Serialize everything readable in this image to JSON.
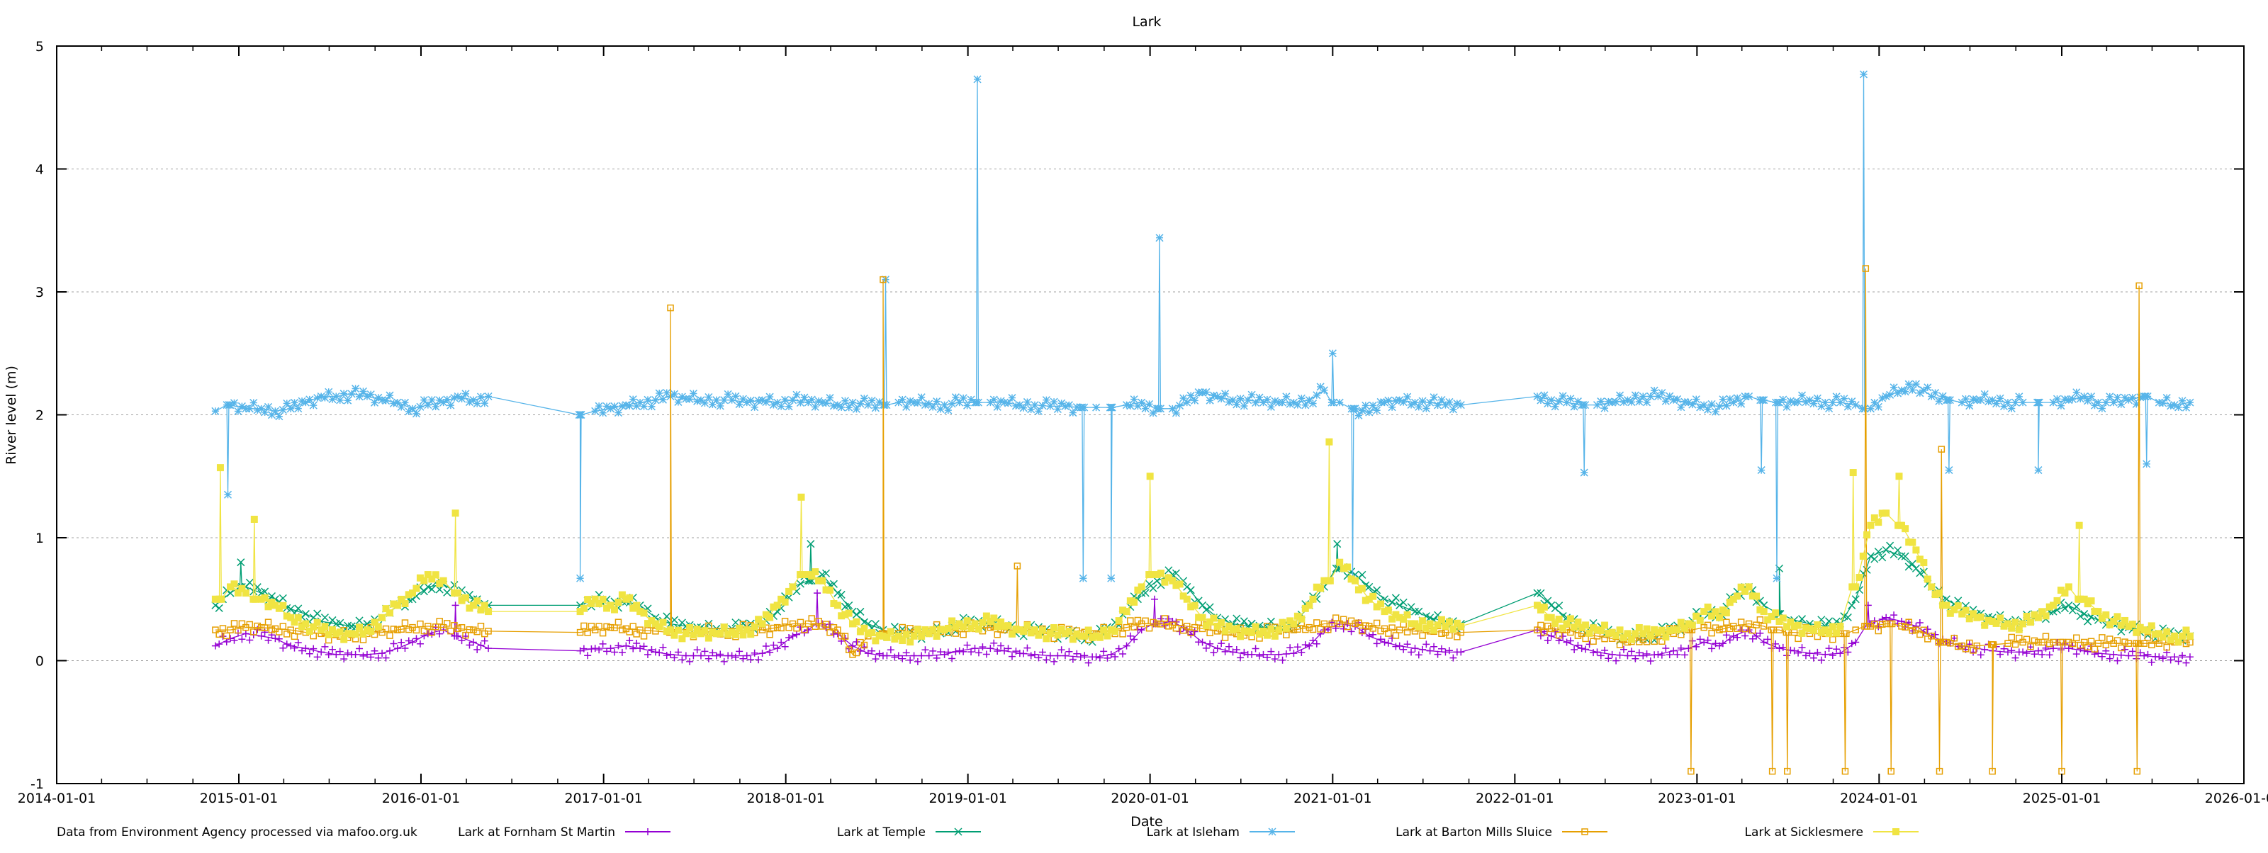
{
  "chart_data": {
    "type": "line",
    "title": "Lark",
    "xlabel": "Date",
    "ylabel": "River level (m)",
    "xlim": [
      "2014-01-01",
      "2026-01-01"
    ],
    "ylim": [
      -1,
      5
    ],
    "grid": "horizontal dashed at major y ticks",
    "legend_placement": "bottom",
    "x_ticks": [
      "2014-01-01",
      "2015-01-01",
      "2016-01-01",
      "2017-01-01",
      "2018-01-01",
      "2019-01-01",
      "2020-01-01",
      "2021-01-01",
      "2022-01-01",
      "2023-01-01",
      "2024-01-01",
      "2025-01-01",
      "2026-01-01"
    ],
    "y_ticks": [
      "-1",
      "0",
      "1",
      "2",
      "3",
      "4",
      "5"
    ],
    "footnote": "Data from Environment Agency processed via mafoo.org.uk",
    "x": [
      "2014-11",
      "2014-12",
      "2015-01",
      "2015-02",
      "2015-03",
      "2015-04",
      "2015-05",
      "2015-06",
      "2015-07",
      "2015-08",
      "2015-09",
      "2015-10",
      "2015-11",
      "2015-12",
      "2016-01",
      "2016-02",
      "2016-03",
      "2016-04",
      "2016-05",
      "2016-11",
      "2016-12",
      "2017-01",
      "2017-02",
      "2017-03",
      "2017-04",
      "2017-05",
      "2017-06",
      "2017-07",
      "2017-08",
      "2017-09",
      "2017-10",
      "2017-11",
      "2017-12",
      "2018-01",
      "2018-02",
      "2018-03",
      "2018-04",
      "2018-05",
      "2018-06",
      "2018-07",
      "2018-08",
      "2018-09",
      "2018-10",
      "2018-11",
      "2018-12",
      "2019-01",
      "2019-02",
      "2019-03",
      "2019-04",
      "2019-05",
      "2019-06",
      "2019-07",
      "2019-08",
      "2019-09",
      "2019-10",
      "2019-11",
      "2019-12",
      "2020-01",
      "2020-02",
      "2020-03",
      "2020-04",
      "2020-05",
      "2020-06",
      "2020-07",
      "2020-08",
      "2020-09",
      "2020-10",
      "2020-11",
      "2020-12",
      "2021-01",
      "2021-02",
      "2021-03",
      "2021-04",
      "2021-05",
      "2021-06",
      "2021-07",
      "2021-08",
      "2021-09",
      "2022-02",
      "2022-03",
      "2022-04",
      "2022-05",
      "2022-06",
      "2022-07",
      "2022-08",
      "2022-09",
      "2022-10",
      "2022-11",
      "2022-12",
      "2023-01",
      "2023-02",
      "2023-03",
      "2023-04",
      "2023-05",
      "2023-06",
      "2023-07",
      "2023-08",
      "2023-09",
      "2023-10",
      "2023-11",
      "2023-12",
      "2024-01",
      "2024-02",
      "2024-03",
      "2024-04",
      "2024-05",
      "2024-06",
      "2024-07",
      "2024-08",
      "2024-09",
      "2024-10",
      "2024-11",
      "2024-12",
      "2025-01",
      "2025-02",
      "2025-03",
      "2025-04",
      "2025-05",
      "2025-06",
      "2025-07",
      "2025-08",
      "2025-09"
    ],
    "series": [
      {
        "name": "Lark at Fornham St Martin",
        "color": "#9400d3",
        "marker": "plus",
        "values": [
          0.12,
          0.18,
          0.22,
          0.2,
          0.18,
          0.12,
          0.1,
          0.07,
          0.05,
          0.05,
          0.05,
          0.06,
          0.1,
          0.15,
          0.22,
          0.25,
          0.2,
          0.15,
          0.1,
          0.08,
          0.1,
          0.1,
          0.12,
          0.1,
          0.07,
          0.05,
          0.04,
          0.04,
          0.04,
          0.04,
          0.04,
          0.06,
          0.1,
          0.2,
          0.25,
          0.3,
          0.22,
          0.12,
          0.06,
          0.04,
          0.04,
          0.04,
          0.04,
          0.05,
          0.08,
          0.1,
          0.1,
          0.08,
          0.06,
          0.05,
          0.04,
          0.04,
          0.03,
          0.03,
          0.05,
          0.12,
          0.25,
          0.3,
          0.32,
          0.25,
          0.15,
          0.1,
          0.07,
          0.05,
          0.05,
          0.05,
          0.06,
          0.12,
          0.25,
          0.3,
          0.28,
          0.2,
          0.15,
          0.12,
          0.1,
          0.08,
          0.07,
          0.07,
          0.25,
          0.2,
          0.15,
          0.1,
          0.07,
          0.05,
          0.04,
          0.04,
          0.05,
          0.08,
          0.1,
          0.15,
          0.12,
          0.2,
          0.25,
          0.15,
          0.1,
          0.08,
          0.06,
          0.05,
          0.06,
          0.15,
          0.3,
          0.35,
          0.32,
          0.28,
          0.2,
          0.15,
          0.12,
          0.1,
          0.08,
          0.07,
          0.07,
          0.08,
          0.1,
          0.1,
          0.08,
          0.06,
          0.05,
          0.04,
          0.04,
          0.03,
          0.03,
          0.03
        ],
        "peaks": [
          [
            "2016-03-10",
            0.45
          ],
          [
            "2018-03-05",
            0.55
          ],
          [
            "2020-01-10",
            0.5
          ],
          [
            "2023-12-10",
            0.45
          ]
        ]
      },
      {
        "name": "Lark at Temple",
        "color": "#009e73",
        "marker": "cross",
        "values": [
          0.45,
          0.55,
          0.6,
          0.55,
          0.5,
          0.42,
          0.38,
          0.32,
          0.3,
          0.28,
          0.3,
          0.35,
          0.45,
          0.5,
          0.6,
          0.62,
          0.55,
          0.5,
          0.45,
          0.45,
          0.5,
          0.45,
          0.48,
          0.45,
          0.35,
          0.3,
          0.28,
          0.27,
          0.26,
          0.26,
          0.27,
          0.3,
          0.4,
          0.6,
          0.65,
          0.7,
          0.55,
          0.4,
          0.3,
          0.25,
          0.22,
          0.22,
          0.23,
          0.25,
          0.3,
          0.3,
          0.3,
          0.28,
          0.25,
          0.24,
          0.23,
          0.22,
          0.2,
          0.2,
          0.25,
          0.4,
          0.55,
          0.65,
          0.7,
          0.6,
          0.45,
          0.35,
          0.3,
          0.28,
          0.27,
          0.27,
          0.3,
          0.45,
          0.6,
          0.75,
          0.7,
          0.6,
          0.5,
          0.45,
          0.4,
          0.35,
          0.32,
          0.3,
          0.55,
          0.45,
          0.35,
          0.28,
          0.25,
          0.22,
          0.2,
          0.2,
          0.22,
          0.25,
          0.3,
          0.4,
          0.38,
          0.5,
          0.6,
          0.45,
          0.38,
          0.33,
          0.3,
          0.28,
          0.3,
          0.5,
          0.85,
          0.9,
          0.85,
          0.75,
          0.6,
          0.5,
          0.42,
          0.38,
          0.35,
          0.32,
          0.32,
          0.35,
          0.4,
          0.45,
          0.38,
          0.33,
          0.3,
          0.27,
          0.25,
          0.22,
          0.2,
          0.2
        ],
        "peaks": [
          [
            "2015-01-05",
            0.8
          ],
          [
            "2018-02-20",
            0.95
          ],
          [
            "2021-01-10",
            0.95
          ],
          [
            "2023-06-15",
            0.75
          ]
        ]
      },
      {
        "name": "Lark at Isleham",
        "color": "#56b4e9",
        "marker": "star",
        "values": [
          2.03,
          2.08,
          2.05,
          2.05,
          2.03,
          2.05,
          2.1,
          2.15,
          2.15,
          2.17,
          2.15,
          2.12,
          2.1,
          2.05,
          2.08,
          2.1,
          2.15,
          2.12,
          2.15,
          2.0,
          2.03,
          2.05,
          2.08,
          2.1,
          2.12,
          2.15,
          2.13,
          2.12,
          2.12,
          2.12,
          2.1,
          2.12,
          2.1,
          2.12,
          2.1,
          2.1,
          2.08,
          2.1,
          2.08,
          2.08,
          2.1,
          2.1,
          2.09,
          2.08,
          2.1,
          2.1,
          2.1,
          2.1,
          2.08,
          2.08,
          2.07,
          2.07,
          2.06,
          2.06,
          2.06,
          2.08,
          2.1,
          2.05,
          2.05,
          2.1,
          2.18,
          2.15,
          2.12,
          2.12,
          2.1,
          2.1,
          2.1,
          2.12,
          2.2,
          2.1,
          2.05,
          2.02,
          2.1,
          2.12,
          2.1,
          2.1,
          2.08,
          2.08,
          2.15,
          2.12,
          2.1,
          2.08,
          2.08,
          2.1,
          2.12,
          2.15,
          2.15,
          2.12,
          2.1,
          2.08,
          2.07,
          2.1,
          2.15,
          2.12,
          2.1,
          2.1,
          2.12,
          2.1,
          2.1,
          2.08,
          2.05,
          2.15,
          2.2,
          2.25,
          2.15,
          2.12,
          2.1,
          2.12,
          2.12,
          2.1,
          2.1,
          2.1,
          2.1,
          2.12,
          2.15,
          2.1,
          2.1,
          2.12,
          2.15,
          2.1,
          2.08,
          2.1
        ],
        "peaks": [
          [
            "2014-12-10",
            1.35
          ],
          [
            "2016-11-15",
            0.67
          ],
          [
            "2018-07-20",
            3.1
          ],
          [
            "2019-01-20",
            4.73
          ],
          [
            "2019-08-20",
            0.67
          ],
          [
            "2019-10-15",
            0.67
          ],
          [
            "2020-01-20",
            3.44
          ],
          [
            "2021-01-01",
            2.5
          ],
          [
            "2021-02-10",
            0.67
          ],
          [
            "2022-05-20",
            1.53
          ],
          [
            "2023-05-10",
            1.55
          ],
          [
            "2023-06-10",
            0.67
          ],
          [
            "2023-12-01",
            4.77
          ],
          [
            "2024-05-20",
            1.55
          ],
          [
            "2024-11-15",
            1.55
          ],
          [
            "2025-06-20",
            1.6
          ]
        ]
      },
      {
        "name": "Lark at Barton Mills Sluice",
        "color": "#e69f00",
        "marker": "open-square",
        "values": [
          0.25,
          0.25,
          0.27,
          0.27,
          0.26,
          0.25,
          0.23,
          0.22,
          0.21,
          0.21,
          0.22,
          0.23,
          0.25,
          0.27,
          0.28,
          0.27,
          0.26,
          0.25,
          0.24,
          0.23,
          0.25,
          0.27,
          0.26,
          0.25,
          0.24,
          0.23,
          0.23,
          0.23,
          0.24,
          0.24,
          0.25,
          0.25,
          0.27,
          0.3,
          0.3,
          0.28,
          0.25,
          0.05,
          0.2,
          0.22,
          0.22,
          0.23,
          0.24,
          0.25,
          0.26,
          0.26,
          0.27,
          0.25,
          0.25,
          0.24,
          0.23,
          0.22,
          0.22,
          0.22,
          0.25,
          0.27,
          0.3,
          0.3,
          0.29,
          0.28,
          0.26,
          0.24,
          0.23,
          0.23,
          0.23,
          0.24,
          0.25,
          0.27,
          0.3,
          0.3,
          0.3,
          0.28,
          0.26,
          0.25,
          0.24,
          0.24,
          0.23,
          0.23,
          0.25,
          0.26,
          0.25,
          0.22,
          0.2,
          0.18,
          0.15,
          0.17,
          0.2,
          0.22,
          0.25,
          0.27,
          0.25,
          0.28,
          0.3,
          0.28,
          0.25,
          0.23,
          0.22,
          0.22,
          0.22,
          0.25,
          0.28,
          0.3,
          0.28,
          0.25,
          0.2,
          0.15,
          0.12,
          0.12,
          0.13,
          0.14,
          0.15,
          0.15,
          0.15,
          0.15,
          0.15,
          0.14,
          0.14,
          0.14,
          0.14,
          0.14,
          0.15,
          0.15
        ],
        "peaks": [
          [
            "2017-05-15",
            2.87
          ],
          [
            "2018-07-15",
            3.1
          ],
          [
            "2019-04-10",
            0.77
          ],
          [
            "2022-12-20",
            -0.9
          ],
          [
            "2023-06-01",
            -0.9
          ],
          [
            "2023-07-01",
            -0.9
          ],
          [
            "2023-10-25",
            -0.9
          ],
          [
            "2023-12-05",
            3.19
          ],
          [
            "2024-01-25",
            -0.9
          ],
          [
            "2024-05-01",
            -0.9
          ],
          [
            "2024-05-05",
            1.72
          ],
          [
            "2024-08-15",
            -0.9
          ],
          [
            "2025-01-01",
            -0.9
          ],
          [
            "2025-06-01",
            -0.9
          ],
          [
            "2025-06-05",
            3.05
          ]
        ]
      },
      {
        "name": "Lark at Sicklesmere",
        "color": "#f0e442",
        "marker": "filled-square",
        "values": [
          0.5,
          0.6,
          0.55,
          0.5,
          0.45,
          0.35,
          0.3,
          0.25,
          0.22,
          0.22,
          0.25,
          0.35,
          0.45,
          0.55,
          0.7,
          0.65,
          0.55,
          0.45,
          0.4,
          0.4,
          0.5,
          0.45,
          0.5,
          0.4,
          0.3,
          0.25,
          0.22,
          0.22,
          0.22,
          0.23,
          0.25,
          0.3,
          0.45,
          0.6,
          0.7,
          0.65,
          0.45,
          0.3,
          0.22,
          0.2,
          0.2,
          0.2,
          0.22,
          0.25,
          0.3,
          0.3,
          0.32,
          0.28,
          0.25,
          0.25,
          0.22,
          0.22,
          0.2,
          0.2,
          0.25,
          0.4,
          0.6,
          0.7,
          0.65,
          0.5,
          0.35,
          0.28,
          0.25,
          0.24,
          0.24,
          0.25,
          0.3,
          0.45,
          0.65,
          0.8,
          0.65,
          0.5,
          0.4,
          0.35,
          0.3,
          0.3,
          0.28,
          0.28,
          0.45,
          0.35,
          0.3,
          0.27,
          0.25,
          0.23,
          0.22,
          0.22,
          0.23,
          0.25,
          0.3,
          0.4,
          0.35,
          0.5,
          0.6,
          0.4,
          0.32,
          0.28,
          0.26,
          0.25,
          0.28,
          0.6,
          1.1,
          1.2,
          1.1,
          0.9,
          0.6,
          0.45,
          0.38,
          0.35,
          0.32,
          0.3,
          0.3,
          0.35,
          0.45,
          0.6,
          0.5,
          0.4,
          0.32,
          0.28,
          0.25,
          0.22,
          0.2,
          0.2
        ],
        "peaks": [
          [
            "2014-11-25",
            1.57
          ],
          [
            "2015-02-01",
            1.15
          ],
          [
            "2016-03-10",
            1.2
          ],
          [
            "2018-02-01",
            1.33
          ],
          [
            "2020-01-01",
            1.5
          ],
          [
            "2020-12-25",
            1.78
          ],
          [
            "2023-11-10",
            1.53
          ],
          [
            "2024-02-10",
            1.5
          ],
          [
            "2025-02-05",
            1.1
          ]
        ]
      }
    ]
  }
}
